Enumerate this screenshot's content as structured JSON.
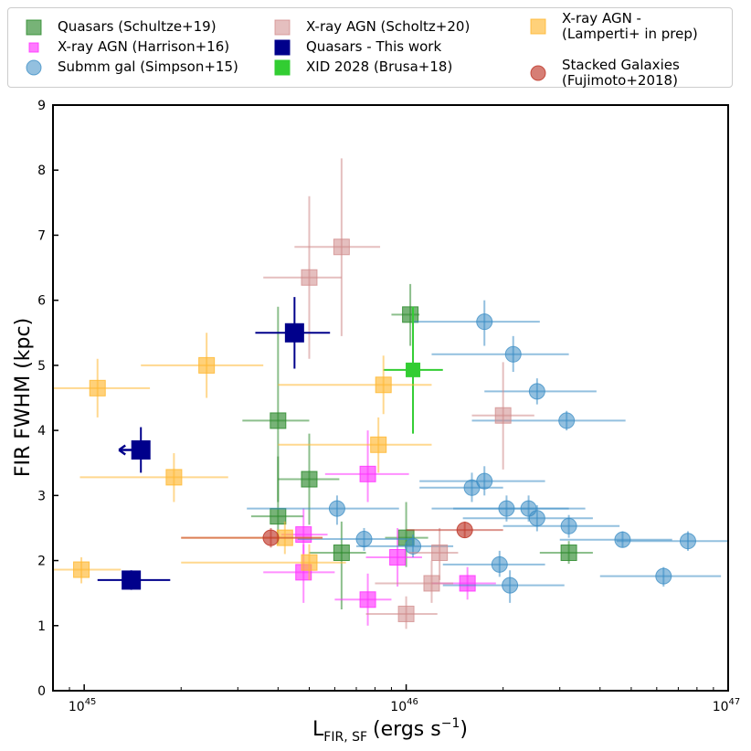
{
  "chart_data": {
    "type": "scatter",
    "xscale": "log",
    "xlim": [
      8e+44,
      1e+47
    ],
    "ylim": [
      0,
      9
    ],
    "xlabel_main": "L",
    "xlabel_sub": "FIR, SF",
    "xlabel_units": "(ergs s",
    "xlabel_exp": "−1",
    "xlabel_close": ")",
    "ylabel": "FIR FWHM (kpc)",
    "x_ticks": [
      {
        "base": "10",
        "exp": "45",
        "value": 1e+45
      },
      {
        "base": "10",
        "exp": "46",
        "value": 1e+46
      },
      {
        "base": "10",
        "exp": "47",
        "value": 1e+47
      }
    ],
    "y_ticks": [
      "0",
      "1",
      "2",
      "3",
      "4",
      "5",
      "6",
      "7",
      "8",
      "9"
    ],
    "legend": [
      {
        "label": [
          "Quasars (Schultze+19)"
        ],
        "series": "schultze"
      },
      {
        "label": [
          "X-ray AGN (Harrison+16)"
        ],
        "series": "harrison"
      },
      {
        "label": [
          "Submm gal (Simpson+15)"
        ],
        "series": "simpson"
      },
      {
        "label": [
          "X-ray AGN (Scholtz+20)"
        ],
        "series": "scholtz"
      },
      {
        "label": [
          "Quasars - This work"
        ],
        "series": "thiswork"
      },
      {
        "label": [
          "XID 2028 (Brusa+18)"
        ],
        "series": "brusa"
      },
      {
        "label": [
          "X-ray AGN -",
          "(Lamperti+ in prep)"
        ],
        "series": "lamperti"
      },
      {
        "label": [
          "Stacked Galaxies",
          "(Fujimoto+2018)"
        ],
        "series": "fujimoto"
      }
    ],
    "series": [
      {
        "id": "schultze",
        "name": "Quasars (Schultze+19)",
        "marker": "square-cross",
        "color": "#2e8b2e",
        "opacity": 0.65,
        "points": [
          {
            "x": 1.03e+46,
            "y": 5.78,
            "xerr": [
              9e+45,
              1.1e+46
            ],
            "yerr": [
              5.3,
              6.25
            ]
          },
          {
            "x": 4e+45,
            "y": 4.15,
            "xerr": [
              3.1e+45,
              5e+45
            ],
            "yerr": [
              2.9,
              5.9
            ]
          },
          {
            "x": 5e+45,
            "y": 3.25,
            "xerr": [
              4e+45,
              6.2e+45
            ],
            "yerr": [
              2.55,
              3.95
            ]
          },
          {
            "x": 4e+45,
            "y": 2.68,
            "xerr": [
              3.3e+45,
              4.8e+45
            ],
            "yerr": [
              2.25,
              3.6
            ]
          },
          {
            "x": 1e+46,
            "y": 2.35,
            "xerr": [
              8.6e+45,
              1.17e+46
            ],
            "yerr": [
              1.9,
              2.9
            ]
          },
          {
            "x": 6.3e+45,
            "y": 2.12,
            "xerr": [
              5e+45,
              7.5e+45
            ],
            "yerr": [
              1.25,
              2.6
            ]
          },
          {
            "x": 3.2e+46,
            "y": 2.12,
            "xerr": [
              2.6e+46,
              3.8e+46
            ],
            "yerr": [
              1.95,
              2.3
            ]
          }
        ]
      },
      {
        "id": "harrison",
        "name": "X-ray AGN (Harrison+16)",
        "marker": "square-cross",
        "color": "#ff33ff",
        "opacity": 0.65,
        "points": [
          {
            "x": 7.6e+45,
            "y": 3.33,
            "xerr": [
              5.6e+45,
              1.02e+46
            ],
            "yerr": [
              2.9,
              4.0
            ]
          },
          {
            "x": 4.8e+45,
            "y": 2.4,
            "xerr": [
              4.1e+45,
              5.7e+45
            ],
            "yerr": [
              2.1,
              2.8
            ]
          },
          {
            "x": 4.8e+45,
            "y": 1.82,
            "xerr": [
              3.6e+45,
              6e+45
            ],
            "yerr": [
              1.35,
              2.25
            ]
          },
          {
            "x": 9.4e+45,
            "y": 2.05,
            "xerr": [
              7.5e+45,
              1.12e+46
            ],
            "yerr": [
              1.6,
              2.5
            ]
          },
          {
            "x": 7.6e+45,
            "y": 1.4,
            "xerr": [
              6e+45,
              9e+45
            ],
            "yerr": [
              1.0,
              1.8
            ]
          },
          {
            "x": 1.55e+46,
            "y": 1.65,
            "xerr": [
              1.2e+46,
              1.9e+46
            ],
            "yerr": [
              1.4,
              1.9
            ]
          }
        ]
      },
      {
        "id": "simpson",
        "name": "Submm gal (Simpson+15)",
        "marker": "circle-cross",
        "color": "#3a8cc4",
        "opacity": 0.55,
        "points": [
          {
            "x": 1.75e+46,
            "y": 5.67,
            "xerr": [
              1.05e+46,
              2.6e+46
            ],
            "yerr": [
              5.3,
              6.0
            ]
          },
          {
            "x": 2.15e+46,
            "y": 5.17,
            "xerr": [
              1.2e+46,
              3.2e+46
            ],
            "yerr": [
              4.9,
              5.45
            ]
          },
          {
            "x": 2.55e+46,
            "y": 4.6,
            "xerr": [
              1.75e+46,
              3.9e+46
            ],
            "yerr": [
              4.4,
              4.8
            ]
          },
          {
            "x": 3.15e+46,
            "y": 4.15,
            "xerr": [
              1.6e+46,
              4.8e+46
            ],
            "yerr": [
              4.0,
              4.3
            ]
          },
          {
            "x": 1.75e+46,
            "y": 3.22,
            "xerr": [
              1.1e+46,
              2.7e+46
            ],
            "yerr": [
              3.0,
              3.45
            ]
          },
          {
            "x": 1.6e+46,
            "y": 3.12,
            "xerr": [
              1.1e+46,
              2e+46
            ],
            "yerr": [
              2.9,
              3.35
            ]
          },
          {
            "x": 6.1e+45,
            "y": 2.8,
            "xerr": [
              3.2e+45,
              9.5e+45
            ],
            "yerr": [
              2.55,
              3.0
            ]
          },
          {
            "x": 2.05e+46,
            "y": 2.8,
            "xerr": [
              1.2e+46,
              3.2e+46
            ],
            "yerr": [
              2.6,
              3.0
            ]
          },
          {
            "x": 2.4e+46,
            "y": 2.8,
            "xerr": [
              1.4e+46,
              3.6e+46
            ],
            "yerr": [
              2.6,
              3.0
            ]
          },
          {
            "x": 2.55e+46,
            "y": 2.65,
            "xerr": [
              1.5e+46,
              3.8e+46
            ],
            "yerr": [
              2.45,
              2.85
            ]
          },
          {
            "x": 3.2e+46,
            "y": 2.53,
            "xerr": [
              2e+46,
              4.6e+46
            ],
            "yerr": [
              2.35,
              2.7
            ]
          },
          {
            "x": 7.4e+45,
            "y": 2.33,
            "xerr": [
              4.6e+45,
              1.05e+46
            ],
            "yerr": [
              2.15,
              2.5
            ]
          },
          {
            "x": 1.05e+46,
            "y": 2.22,
            "xerr": [
              7e+45,
              1.4e+46
            ],
            "yerr": [
              2.05,
              2.4
            ]
          },
          {
            "x": 4.7e+46,
            "y": 2.32,
            "xerr": [
              3e+46,
              6.7e+46
            ],
            "yerr": [
              2.2,
              2.45
            ]
          },
          {
            "x": 7.5e+46,
            "y": 2.3,
            "xerr": [
              4.5e+46,
              1e+47
            ],
            "yerr": [
              2.15,
              2.45
            ]
          },
          {
            "x": 1.95e+46,
            "y": 1.94,
            "xerr": [
              1.3e+46,
              2.7e+46
            ],
            "yerr": [
              1.75,
              2.15
            ]
          },
          {
            "x": 2.1e+46,
            "y": 1.62,
            "xerr": [
              1.3e+46,
              3.1e+46
            ],
            "yerr": [
              1.35,
              1.85
            ]
          },
          {
            "x": 6.3e+46,
            "y": 1.76,
            "xerr": [
              4e+46,
              9.5e+46
            ],
            "yerr": [
              1.6,
              1.9
            ]
          }
        ]
      },
      {
        "id": "scholtz",
        "name": "X-ray AGN (Scholtz+20)",
        "marker": "square-cross",
        "color": "#d08a8a",
        "opacity": 0.55,
        "points": [
          {
            "x": 6.3e+45,
            "y": 6.82,
            "xerr": [
              4.5e+45,
              8.3e+45
            ],
            "yerr": [
              5.45,
              8.18
            ]
          },
          {
            "x": 5e+45,
            "y": 6.35,
            "xerr": [
              3.6e+45,
              6.3e+45
            ],
            "yerr": [
              5.1,
              7.6
            ]
          },
          {
            "x": 2e+46,
            "y": 4.23,
            "xerr": [
              1.6e+46,
              2.5e+46
            ],
            "yerr": [
              3.4,
              5.05
            ]
          },
          {
            "x": 1.27e+46,
            "y": 2.12,
            "xerr": [
              1.02e+46,
              1.45e+46
            ],
            "yerr": [
              1.7,
              2.5
            ]
          },
          {
            "x": 1.2e+46,
            "y": 1.65,
            "xerr": [
              8e+45,
              1.4e+46
            ],
            "yerr": [
              1.35,
              2.0
            ]
          },
          {
            "x": 1e+46,
            "y": 1.18,
            "xerr": [
              7.5e+45,
              1.25e+46
            ],
            "yerr": [
              0.95,
              1.45
            ]
          }
        ]
      },
      {
        "id": "thiswork",
        "name": "Quasars - This work",
        "marker": "square",
        "color": "#00008b",
        "opacity": 1.0,
        "points": [
          {
            "x": 4.5e+45,
            "y": 5.5,
            "xerr": [
              3.4e+45,
              5.8e+45
            ],
            "yerr": [
              4.95,
              6.05
            ]
          },
          {
            "x": 1.5e+45,
            "y": 3.7,
            "xerr": [
              1.3e+45,
              1.6e+45
            ],
            "yerr": [
              3.35,
              4.05
            ],
            "upper_limit_x": true
          },
          {
            "x": 1.4e+45,
            "y": 1.7,
            "xerr": [
              1.1e+45,
              1.85e+45
            ],
            "yerr": [
              1.55,
              1.85
            ]
          }
        ]
      },
      {
        "id": "brusa",
        "name": "XID 2028 (Brusa+18)",
        "marker": "square",
        "color": "#32cd32",
        "opacity": 1.0,
        "points": [
          {
            "x": 1.05e+46,
            "y": 4.93,
            "xerr": [
              8.5e+45,
              1.3e+46
            ],
            "yerr": [
              3.95,
              5.9
            ]
          }
        ]
      },
      {
        "id": "lamperti",
        "name": "X-ray AGN - (Lamperti+ in prep)",
        "marker": "square-cross",
        "color": "#ffb833",
        "opacity": 0.65,
        "points": [
          {
            "x": 1.1e+45,
            "y": 4.65,
            "xerr": [
              8e+44,
              1.6e+45
            ],
            "yerr": [
              4.2,
              5.1
            ]
          },
          {
            "x": 2.4e+45,
            "y": 5.0,
            "xerr": [
              1.5e+45,
              3.6e+45
            ],
            "yerr": [
              4.5,
              5.5
            ]
          },
          {
            "x": 8.5e+45,
            "y": 4.7,
            "xerr": [
              4e+45,
              1.2e+46
            ],
            "yerr": [
              4.25,
              5.15
            ]
          },
          {
            "x": 8.2e+45,
            "y": 3.78,
            "xerr": [
              4e+45,
              1.2e+46
            ],
            "yerr": [
              3.35,
              4.2
            ]
          },
          {
            "x": 1.9e+45,
            "y": 3.28,
            "xerr": [
              9.7e+44,
              2.8e+45
            ],
            "yerr": [
              2.9,
              3.65
            ]
          },
          {
            "x": 4.2e+45,
            "y": 2.35,
            "xerr": [
              2e+45,
              5.5e+45
            ],
            "yerr": [
              2.1,
              2.6
            ]
          },
          {
            "x": 5e+45,
            "y": 1.97,
            "xerr": [
              2e+45,
              6.5e+45
            ],
            "yerr": [
              1.7,
              2.25
            ]
          },
          {
            "x": 9.8e+44,
            "y": 1.86,
            "xerr": [
              8e+44,
              1.3e+45
            ],
            "yerr": [
              1.65,
              2.05
            ]
          }
        ]
      },
      {
        "id": "fujimoto",
        "name": "Stacked Galaxies (Fujimoto+2018)",
        "marker": "circle-cross",
        "color": "#c0392b",
        "opacity": 0.65,
        "points": [
          {
            "x": 3.8e+45,
            "y": 2.35,
            "xerr": [
              2e+45,
              5.5e+45
            ],
            "yerr": [
              2.2,
              2.5
            ]
          },
          {
            "x": 1.52e+46,
            "y": 2.47,
            "xerr": [
              1e+46,
              2e+46
            ],
            "yerr": [
              2.35,
              2.6
            ]
          }
        ]
      }
    ]
  }
}
